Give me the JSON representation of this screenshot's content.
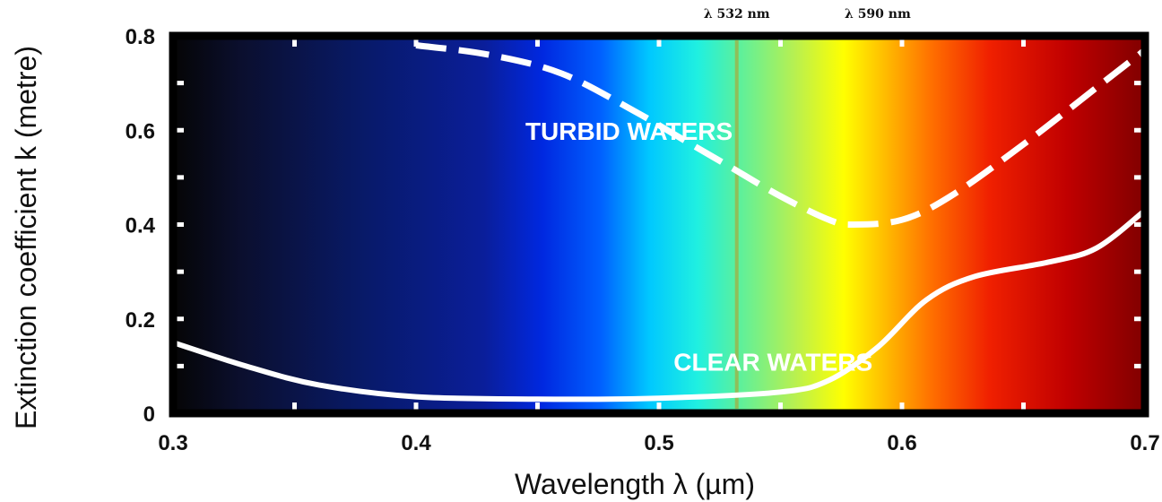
{
  "chart_data": {
    "type": "line",
    "xlabel": "Wavelength λ (µm)",
    "ylabel": "Extinction coefficient k (metre)",
    "xlim": [
      0.3,
      0.7
    ],
    "ylim": [
      0,
      0.8
    ],
    "xticks": [
      "0.3",
      "0.4",
      "0.5",
      "0.6",
      "0.7"
    ],
    "yticks": [
      "0",
      "0.2",
      "0.4",
      "0.6",
      "0.8"
    ],
    "background": "visible spectrum gradient",
    "series": [
      {
        "name": "TURBID WATERS",
        "style": "dashed",
        "color": "#ffffff",
        "x": [
          0.4,
          0.43,
          0.46,
          0.49,
          0.51,
          0.53,
          0.55,
          0.57,
          0.58,
          0.6,
          0.62,
          0.65,
          0.68,
          0.7
        ],
        "y": [
          0.78,
          0.76,
          0.72,
          0.64,
          0.58,
          0.52,
          0.46,
          0.41,
          0.4,
          0.41,
          0.46,
          0.57,
          0.69,
          0.77
        ]
      },
      {
        "name": "CLEAR WATERS",
        "style": "solid",
        "color": "#ffffff",
        "x": [
          0.3,
          0.33,
          0.36,
          0.4,
          0.45,
          0.5,
          0.55,
          0.57,
          0.59,
          0.61,
          0.63,
          0.66,
          0.68,
          0.7
        ],
        "y": [
          0.15,
          0.1,
          0.06,
          0.035,
          0.03,
          0.032,
          0.045,
          0.07,
          0.14,
          0.24,
          0.29,
          0.32,
          0.35,
          0.43
        ]
      }
    ],
    "annotations": [
      {
        "text": "TURBID WATERS",
        "x": 0.445,
        "y": 0.58
      },
      {
        "text": "CLEAR WATERS",
        "x": 0.506,
        "y": 0.09
      }
    ],
    "markers": [
      {
        "label": "λ 532 nm",
        "x": 0.532,
        "line": true,
        "color": "#8fbf5a"
      },
      {
        "label": "λ 590 nm",
        "x": 0.59,
        "line": false
      }
    ]
  }
}
